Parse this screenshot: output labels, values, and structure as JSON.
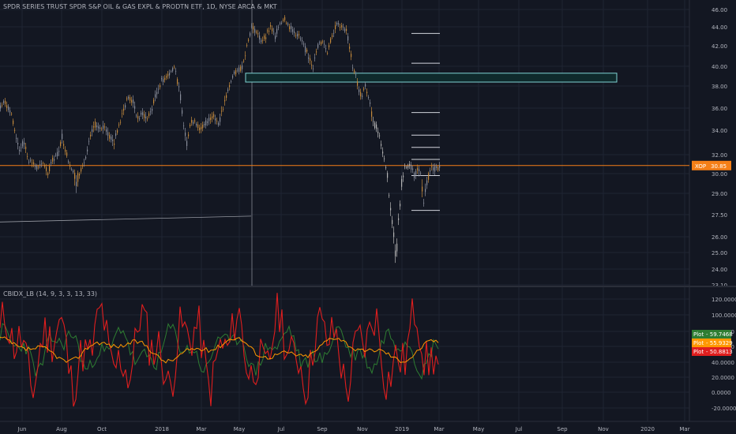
{
  "title": "SPDR SERIES TRUST SPDR S&P OIL & GAS EXPL & PRODTN ETF, 1D, NYSE ARCA & MKT",
  "indicator_title": "CBIDX_LB (14, 9, 3, 3, 13, 33)",
  "colors": {
    "background": "#131722",
    "candle": "#c58a3c",
    "candle_light": "#b5b5b5",
    "price_line": "#f57f17",
    "zone_fill": "#0f2a2c",
    "zone_stroke": "#7fd3d3",
    "grid": "#1f2433",
    "red": "#e01e1e",
    "green": "#2e7d32",
    "orange": "#ff9800"
  },
  "chart_data": [
    {
      "type": "line",
      "title": "",
      "yticks": [
        "46.00",
        "44.00",
        "42.00",
        "40.00",
        "38.00",
        "36.00",
        "34.00",
        "32.00",
        "30.00",
        "29.00",
        "27.50",
        "26.00",
        "25.00",
        "24.00",
        "23.10"
      ],
      "xticks": [
        "Jun",
        "Aug",
        "Oct",
        "2018",
        "Mar",
        "May",
        "Jul",
        "Sep",
        "Nov",
        "2019",
        "Mar",
        "May",
        "Jul",
        "Sep",
        "Nov",
        "2020",
        "Mar"
      ],
      "price_points": [
        [
          0,
          36.2
        ],
        [
          6,
          36.5
        ],
        [
          12,
          35.8
        ],
        [
          18,
          34.0
        ],
        [
          24,
          32.5
        ],
        [
          30,
          33.0
        ],
        [
          36,
          31.5
        ],
        [
          42,
          31.0
        ],
        [
          48,
          30.5
        ],
        [
          54,
          31.2
        ],
        [
          60,
          30.0
        ],
        [
          66,
          31.5
        ],
        [
          72,
          32.0
        ],
        [
          78,
          33.5
        ],
        [
          84,
          32.0
        ],
        [
          90,
          30.5
        ],
        [
          96,
          29.5
        ],
        [
          102,
          30.5
        ],
        [
          108,
          31.5
        ],
        [
          114,
          33.5
        ],
        [
          120,
          34.5
        ],
        [
          126,
          34.0
        ],
        [
          132,
          34.5
        ],
        [
          138,
          33.5
        ],
        [
          144,
          33.0
        ],
        [
          150,
          34.5
        ],
        [
          156,
          36.0
        ],
        [
          162,
          37.0
        ],
        [
          168,
          36.5
        ],
        [
          174,
          35.0
        ],
        [
          180,
          35.5
        ],
        [
          186,
          35.0
        ],
        [
          192,
          36.0
        ],
        [
          198,
          37.5
        ],
        [
          204,
          38.5
        ],
        [
          210,
          39.0
        ],
        [
          216,
          39.5
        ],
        [
          220,
          40.0
        ],
        [
          224,
          38.5
        ],
        [
          228,
          37.0
        ],
        [
          232,
          34.5
        ],
        [
          236,
          33.0
        ],
        [
          240,
          34.5
        ],
        [
          246,
          35.0
        ],
        [
          252,
          34.0
        ],
        [
          258,
          34.5
        ],
        [
          264,
          35.0
        ],
        [
          270,
          35.5
        ],
        [
          276,
          34.5
        ],
        [
          282,
          36.0
        ],
        [
          288,
          37.5
        ],
        [
          294,
          39.0
        ],
        [
          300,
          39.5
        ],
        [
          306,
          40.0
        ],
        [
          312,
          42.0
        ],
        [
          318,
          44.0
        ],
        [
          324,
          43.5
        ],
        [
          330,
          42.5
        ],
        [
          336,
          43.0
        ],
        [
          342,
          44.0
        ],
        [
          348,
          43.0
        ],
        [
          354,
          44.5
        ],
        [
          360,
          45.0
        ],
        [
          366,
          44.0
        ],
        [
          372,
          43.5
        ],
        [
          378,
          43.0
        ],
        [
          384,
          42.0
        ],
        [
          390,
          41.0
        ],
        [
          396,
          40.0
        ],
        [
          402,
          42.0
        ],
        [
          408,
          42.5
        ],
        [
          414,
          41.5
        ],
        [
          420,
          43.0
        ],
        [
          426,
          44.5
        ],
        [
          432,
          44.0
        ],
        [
          438,
          43.5
        ],
        [
          442,
          42.0
        ],
        [
          446,
          40.0
        ],
        [
          450,
          39.0
        ],
        [
          454,
          37.5
        ],
        [
          458,
          37.0
        ],
        [
          462,
          38.0
        ],
        [
          466,
          37.0
        ],
        [
          470,
          35.5
        ],
        [
          474,
          34.5
        ],
        [
          478,
          34.0
        ],
        [
          482,
          33.0
        ],
        [
          486,
          31.5
        ],
        [
          490,
          30.0
        ],
        [
          494,
          28.0
        ],
        [
          498,
          26.0
        ],
        [
          501,
          24.5
        ],
        [
          504,
          27.0
        ],
        [
          508,
          29.5
        ],
        [
          512,
          30.5
        ],
        [
          518,
          31.0
        ],
        [
          524,
          30.0
        ],
        [
          530,
          30.5
        ],
        [
          536,
          28.5
        ],
        [
          540,
          29.5
        ],
        [
          546,
          30.5
        ],
        [
          552,
          30.5
        ],
        [
          556,
          30.8
        ]
      ],
      "last_price": 30.85,
      "last_price_label": "30.85",
      "horizontal_line": 30.85,
      "zone": {
        "from_x": 311,
        "to_x": 781,
        "y_top": 39.3,
        "y_bottom": 38.4
      },
      "levels": [
        43.3,
        40.3,
        35.6,
        33.6,
        32.6,
        31.5,
        29.9,
        27.8
      ],
      "trend_line": {
        "x1": 0,
        "y1": 27.0,
        "x2": 318,
        "y2": 27.4
      },
      "price_tag_prefix": "XOP"
    },
    {
      "type": "line",
      "title": "CBIDX_LB (14, 9, 3, 3, 13, 33)",
      "yticks": [
        "120.0000",
        "100.0000",
        "80.0000",
        "60.0000",
        "40.0000",
        "20.0000",
        "0.0000",
        "-20.0000"
      ],
      "ylim": [
        -26,
        130
      ],
      "series": [
        {
          "name": "Plot",
          "value": 59.7468,
          "label": "59.7468"
        },
        {
          "name": "Plot",
          "value": 55.9329,
          "label": "55.9329"
        },
        {
          "name": "Plot",
          "value": 50.8813,
          "label": "50.8813"
        }
      ]
    }
  ]
}
